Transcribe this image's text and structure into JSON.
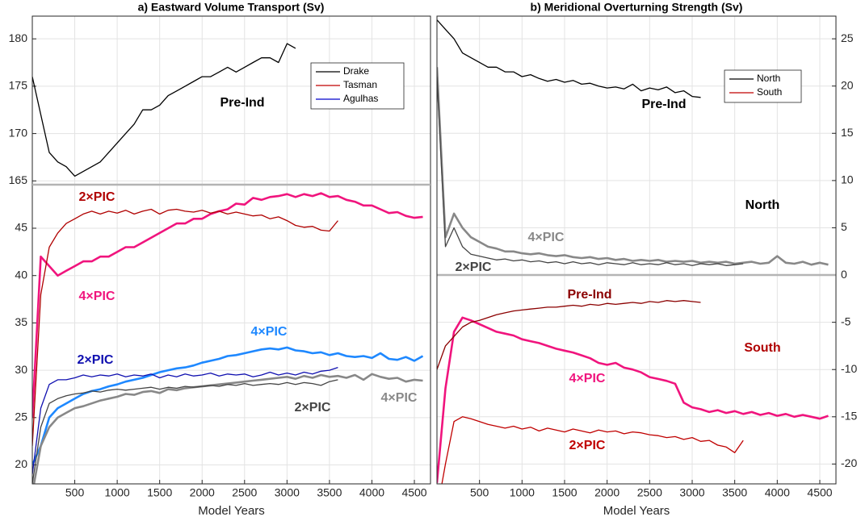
{
  "chart_data": [
    {
      "type": "line",
      "title": "a) Eastward Volume Transport (Sv)",
      "x": [
        0,
        100,
        200,
        300,
        400,
        500,
        600,
        700,
        800,
        900,
        1000,
        1100,
        1200,
        1300,
        1400,
        1500,
        1600,
        1700,
        1800,
        1900,
        2000,
        2100,
        2200,
        2300,
        2400,
        2500,
        2600,
        2700,
        2800,
        2900,
        3000,
        3100,
        3200,
        3300,
        3400,
        3500,
        3600,
        3700,
        3800,
        3900,
        4000,
        4100,
        4200,
        4300,
        4400,
        4500,
        4600
      ],
      "xlim": [
        0,
        4690
      ],
      "ylim": [
        164.6,
        182.4
      ],
      "yticks": [
        165,
        170,
        175,
        180
      ],
      "grid": true,
      "legend": [
        {
          "name": "Drake",
          "color": "#000000"
        },
        {
          "name": "Tasman",
          "color": "#c00000"
        },
        {
          "name": "Agulhas",
          "color": "#0000cc"
        }
      ],
      "series": [
        {
          "color": "#000000",
          "linewidth": 1.3,
          "values": [
            176,
            172,
            168,
            167,
            166.5,
            165.5,
            166,
            166.5,
            167,
            168,
            169,
            170,
            171,
            172.5,
            172.5,
            173,
            174,
            174.5,
            175,
            175.5,
            176,
            176,
            176.5,
            177,
            176.5,
            177,
            177.5,
            178,
            178,
            177.5,
            179.5,
            179,
            null,
            null,
            null,
            null,
            null,
            null,
            null,
            null,
            null,
            null,
            null,
            null,
            null,
            null,
            null
          ]
        }
      ],
      "annotations": [
        {
          "text": "Pre-Ind",
          "color": "#000000"
        }
      ]
    },
    {
      "type": "line",
      "xlabel": "Model Years",
      "x": [
        0,
        100,
        200,
        300,
        400,
        500,
        600,
        700,
        800,
        900,
        1000,
        1100,
        1200,
        1300,
        1400,
        1500,
        1600,
        1700,
        1800,
        1900,
        2000,
        2100,
        2200,
        2300,
        2400,
        2500,
        2600,
        2700,
        2800,
        2900,
        3000,
        3100,
        3200,
        3300,
        3400,
        3500,
        3600,
        3700,
        3800,
        3900,
        4000,
        4100,
        4200,
        4300,
        4400,
        4500,
        4600
      ],
      "xlim": [
        0,
        4690
      ],
      "xticks": [
        500,
        1000,
        1500,
        2000,
        2500,
        3000,
        3500,
        4000,
        4500
      ],
      "ylim": [
        18,
        49.6
      ],
      "yticks": [
        20,
        25,
        30,
        35,
        40,
        45
      ],
      "grid": true,
      "series": [
        {
          "color": "#f0147d",
          "linewidth": 2.6,
          "values": [
            25,
            42,
            41,
            40,
            40.5,
            41,
            41.5,
            41.5,
            42,
            42,
            42.5,
            43,
            43,
            43.5,
            44,
            44.5,
            45,
            45.5,
            45.5,
            46,
            46,
            46.5,
            46.8,
            47,
            47.6,
            47.5,
            48.2,
            48,
            48.3,
            48.4,
            48.6,
            48.3,
            48.6,
            48.4,
            48.7,
            48.3,
            48.4,
            48,
            47.8,
            47.4,
            47.4,
            47,
            46.6,
            46.7,
            46.3,
            46.1,
            46.2
          ]
        },
        {
          "color": "#b00000",
          "linewidth": 1.3,
          "values": [
            22,
            38,
            43,
            44.5,
            45.5,
            46,
            46.5,
            46.8,
            46.5,
            46.8,
            46.6,
            46.9,
            46.5,
            46.8,
            47,
            46.5,
            46.9,
            47,
            46.8,
            46.7,
            46.9,
            46.6,
            46.8,
            46.5,
            46.7,
            46.5,
            46.3,
            46.4,
            46,
            46.2,
            45.8,
            45.3,
            45.1,
            45.2,
            44.8,
            44.7,
            45.8,
            null,
            null,
            null,
            null,
            null,
            null,
            null,
            null,
            null,
            null
          ]
        },
        {
          "color": "#1e88ff",
          "linewidth": 2.6,
          "values": [
            20,
            22,
            25,
            26,
            26.5,
            27,
            27.5,
            27.8,
            28,
            28.3,
            28.5,
            28.8,
            29,
            29.2,
            29.5,
            29.8,
            30,
            30.2,
            30.3,
            30.5,
            30.8,
            31,
            31.2,
            31.5,
            31.6,
            31.8,
            32,
            32.2,
            32.3,
            32.2,
            32.4,
            32.1,
            32,
            31.8,
            31.9,
            31.6,
            31.8,
            31.5,
            31.4,
            31.5,
            31.3,
            31.8,
            31.2,
            31.1,
            31.4,
            31,
            31.5
          ]
        },
        {
          "color": "#888888",
          "linewidth": 2.6,
          "values": [
            17,
            22,
            24,
            25,
            25.5,
            26,
            26.2,
            26.5,
            26.8,
            27,
            27.2,
            27.5,
            27.4,
            27.7,
            27.8,
            27.6,
            28,
            27.9,
            28.1,
            28.2,
            28.3,
            28.4,
            28.5,
            28.6,
            28.7,
            28.8,
            28.9,
            29,
            29.1,
            29.2,
            29.3,
            29.1,
            29.4,
            29.2,
            29.5,
            29.3,
            29.4,
            29.2,
            29.5,
            29,
            29.6,
            29.3,
            29.1,
            29.2,
            28.8,
            29,
            28.9
          ]
        },
        {
          "color": "#444444",
          "linewidth": 1.3,
          "values": [
            18,
            24,
            26.5,
            27,
            27.3,
            27.5,
            27.6,
            27.8,
            27.7,
            27.9,
            28,
            27.9,
            28,
            28.1,
            28.2,
            28,
            28.2,
            28.1,
            28.3,
            28.2,
            28.3,
            28.4,
            28.3,
            28.5,
            28.4,
            28.6,
            28.4,
            28.5,
            28.6,
            28.5,
            28.7,
            28.5,
            28.7,
            28.6,
            28.4,
            28.8,
            29,
            null,
            null,
            null,
            null,
            null,
            null,
            null,
            null,
            null,
            null
          ]
        },
        {
          "color": "#1010b0",
          "linewidth": 1.3,
          "values": [
            19,
            26,
            28.5,
            29,
            29,
            29.2,
            29.5,
            29.3,
            29.5,
            29.4,
            29.6,
            29.3,
            29.5,
            29.4,
            29.6,
            29.2,
            29.5,
            29.3,
            29.6,
            29.4,
            29.5,
            29.7,
            29.4,
            29.6,
            29.5,
            29.6,
            29.3,
            29.5,
            29.8,
            29.5,
            29.7,
            29.5,
            29.8,
            29.6,
            29.9,
            30,
            30.3,
            null,
            null,
            null,
            null,
            null,
            null,
            null,
            null,
            null,
            null
          ]
        }
      ],
      "annotations": [
        {
          "text": "2×PIC",
          "color": "#b00000"
        },
        {
          "text": "4×PIC",
          "color": "#f0147d"
        },
        {
          "text": "4×PIC",
          "color": "#1e88ff"
        },
        {
          "text": "2×PIC",
          "color": "#1010b0"
        },
        {
          "text": "2×PIC",
          "color": "#444444"
        },
        {
          "text": "4×PIC",
          "color": "#888888"
        }
      ]
    },
    {
      "type": "line",
      "title": "b) Meridional Overturning Strength (Sv)",
      "xlabel": "Model Years",
      "x": [
        0,
        100,
        200,
        300,
        400,
        500,
        600,
        700,
        800,
        900,
        1000,
        1100,
        1200,
        1300,
        1400,
        1500,
        1600,
        1700,
        1800,
        1900,
        2000,
        2100,
        2200,
        2300,
        2400,
        2500,
        2600,
        2700,
        2800,
        2900,
        3000,
        3100,
        3200,
        3300,
        3400,
        3500,
        3600,
        3700,
        3800,
        3900,
        4000,
        4100,
        4200,
        4300,
        4400,
        4500,
        4600
      ],
      "xlim": [
        0,
        4690
      ],
      "xticks": [
        500,
        1000,
        1500,
        2000,
        2500,
        3000,
        3500,
        4000,
        4500
      ],
      "ylim": [
        -22.1,
        27.4
      ],
      "yticks": [
        -20,
        -15,
        -10,
        -5,
        0,
        5,
        10,
        15,
        20,
        25
      ],
      "y_axis_side": "right",
      "grid": true,
      "hline": 0,
      "legend": [
        {
          "name": "North",
          "color": "#000000"
        },
        {
          "name": "South",
          "color": "#c00000"
        }
      ],
      "series": [
        {
          "color": "#000000",
          "linewidth": 1.3,
          "values": [
            27,
            26,
            25,
            23.5,
            23,
            22.5,
            22,
            22,
            21.5,
            21.5,
            21,
            21.2,
            20.8,
            20.5,
            20.7,
            20.4,
            20.6,
            20.2,
            20.3,
            20,
            19.8,
            19.9,
            19.7,
            20.2,
            19.5,
            19.8,
            19.6,
            19.9,
            19.3,
            19.5,
            18.9,
            18.8,
            null,
            null,
            null,
            null,
            null,
            null,
            null,
            null,
            null,
            null,
            null,
            null,
            null,
            null,
            null
          ]
        },
        {
          "color": "#888888",
          "linewidth": 2.6,
          "values": [
            22,
            4,
            6.5,
            5,
            4,
            3.5,
            3,
            2.8,
            2.5,
            2.5,
            2.3,
            2.2,
            2.3,
            2.1,
            2,
            2.1,
            1.9,
            1.8,
            1.9,
            1.7,
            1.8,
            1.6,
            1.7,
            1.5,
            1.6,
            1.5,
            1.6,
            1.4,
            1.5,
            1.4,
            1.5,
            1.3,
            1.4,
            1.3,
            1.4,
            1.2,
            1.3,
            1.4,
            1.2,
            1.3,
            2,
            1.3,
            1.2,
            1.4,
            1.1,
            1.3,
            1.1
          ]
        },
        {
          "color": "#444444",
          "linewidth": 1.3,
          "values": [
            21,
            3,
            5,
            3,
            2.2,
            2,
            1.8,
            1.6,
            1.7,
            1.5,
            1.6,
            1.4,
            1.5,
            1.3,
            1.4,
            1.2,
            1.4,
            1.2,
            1.3,
            1.1,
            1.3,
            1.2,
            1.1,
            1.3,
            1.1,
            1.2,
            1.1,
            1.3,
            1.1,
            1.2,
            1,
            1.2,
            1.1,
            1.2,
            1,
            1.1,
            1.2,
            null,
            null,
            null,
            null,
            null,
            null,
            null,
            null,
            null,
            null
          ]
        },
        {
          "color": "#f0147d",
          "linewidth": 2.6,
          "values": [
            -22,
            -12,
            -6,
            -4.5,
            -4.8,
            -5.2,
            -5.6,
            -6,
            -6.2,
            -6.4,
            -6.8,
            -7,
            -7.2,
            -7.5,
            -7.8,
            -8,
            -8.2,
            -8.5,
            -8.8,
            -9.3,
            -9.5,
            -9.3,
            -9.8,
            -10,
            -10.3,
            -10.8,
            -11,
            -11.2,
            -11.5,
            -13.5,
            -14,
            -14.2,
            -14.5,
            -14.3,
            -14.6,
            -14.4,
            -14.7,
            -14.5,
            -14.8,
            -14.6,
            -14.9,
            -14.7,
            -15,
            -14.8,
            -15,
            -15.2,
            -14.9
          ]
        },
        {
          "color": "#8b0000",
          "linewidth": 1.3,
          "values": [
            -10,
            -7.5,
            -6.5,
            -5.5,
            -5,
            -4.8,
            -4.5,
            -4.2,
            -4,
            -3.8,
            -3.7,
            -3.6,
            -3.5,
            -3.4,
            -3.4,
            -3.3,
            -3.2,
            -3.3,
            -3.1,
            -3.2,
            -3,
            -3.1,
            -3,
            -2.9,
            -3,
            -2.8,
            -2.9,
            -2.7,
            -2.8,
            -2.7,
            -2.8,
            -2.9,
            null,
            null,
            null,
            null,
            null,
            null,
            null,
            null,
            null,
            null,
            null,
            null,
            null,
            null,
            null
          ]
        },
        {
          "color": "#c00000",
          "linewidth": 1.3,
          "values": [
            -25,
            -20,
            -15.5,
            -15,
            -15.2,
            -15.5,
            -15.8,
            -16,
            -16.2,
            -16,
            -16.3,
            -16.1,
            -16.5,
            -16.2,
            -16.4,
            -16.6,
            -16.3,
            -16.5,
            -16.7,
            -16.4,
            -16.6,
            -16.5,
            -16.8,
            -16.6,
            -16.7,
            -16.9,
            -17,
            -17.2,
            -17.1,
            -17.4,
            -17.2,
            -17.6,
            -17.5,
            -18,
            -18.2,
            -18.8,
            -17.5,
            null,
            null,
            null,
            null,
            null,
            null,
            null,
            null,
            null,
            null
          ]
        }
      ],
      "annotations": [
        {
          "text": "Pre-Ind",
          "color": "#000000"
        },
        {
          "text": "North",
          "color": "#000000"
        },
        {
          "text": "4×PIC",
          "color": "#888888"
        },
        {
          "text": "2×PIC",
          "color": "#444444"
        },
        {
          "text": "Pre-Ind",
          "color": "#8b0000"
        },
        {
          "text": "South",
          "color": "#b00000"
        },
        {
          "text": "4×PIC",
          "color": "#f0147d"
        },
        {
          "text": "2×PIC",
          "color": "#c00000"
        }
      ]
    }
  ]
}
